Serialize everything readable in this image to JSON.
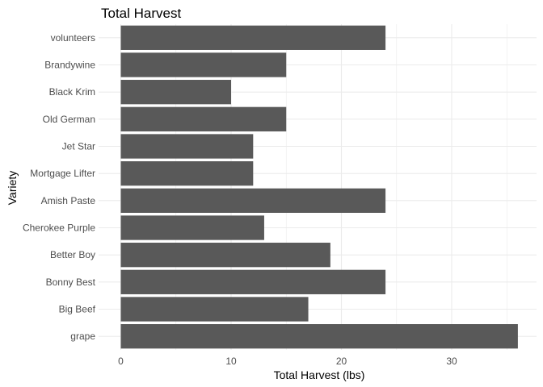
{
  "chart_data": {
    "type": "bar",
    "orientation": "horizontal",
    "title": "Total Harvest",
    "xlabel": "Total Harvest (lbs)",
    "ylabel": "Variety",
    "categories": [
      "volunteers",
      "Brandywine",
      "Black Krim",
      "Old German",
      "Jet Star",
      "Mortgage Lifter",
      "Amish Paste",
      "Cherokee Purple",
      "Better Boy",
      "Bonny Best",
      "Big Beef",
      "grape"
    ],
    "values": [
      24,
      15,
      10,
      15,
      12,
      12,
      24,
      13,
      19,
      24,
      17,
      36
    ],
    "xlim": [
      0,
      37
    ],
    "xticks": [
      0,
      10,
      20,
      30
    ],
    "grid": true,
    "bar_color": "#595959",
    "grid_color": "#ebebeb"
  }
}
